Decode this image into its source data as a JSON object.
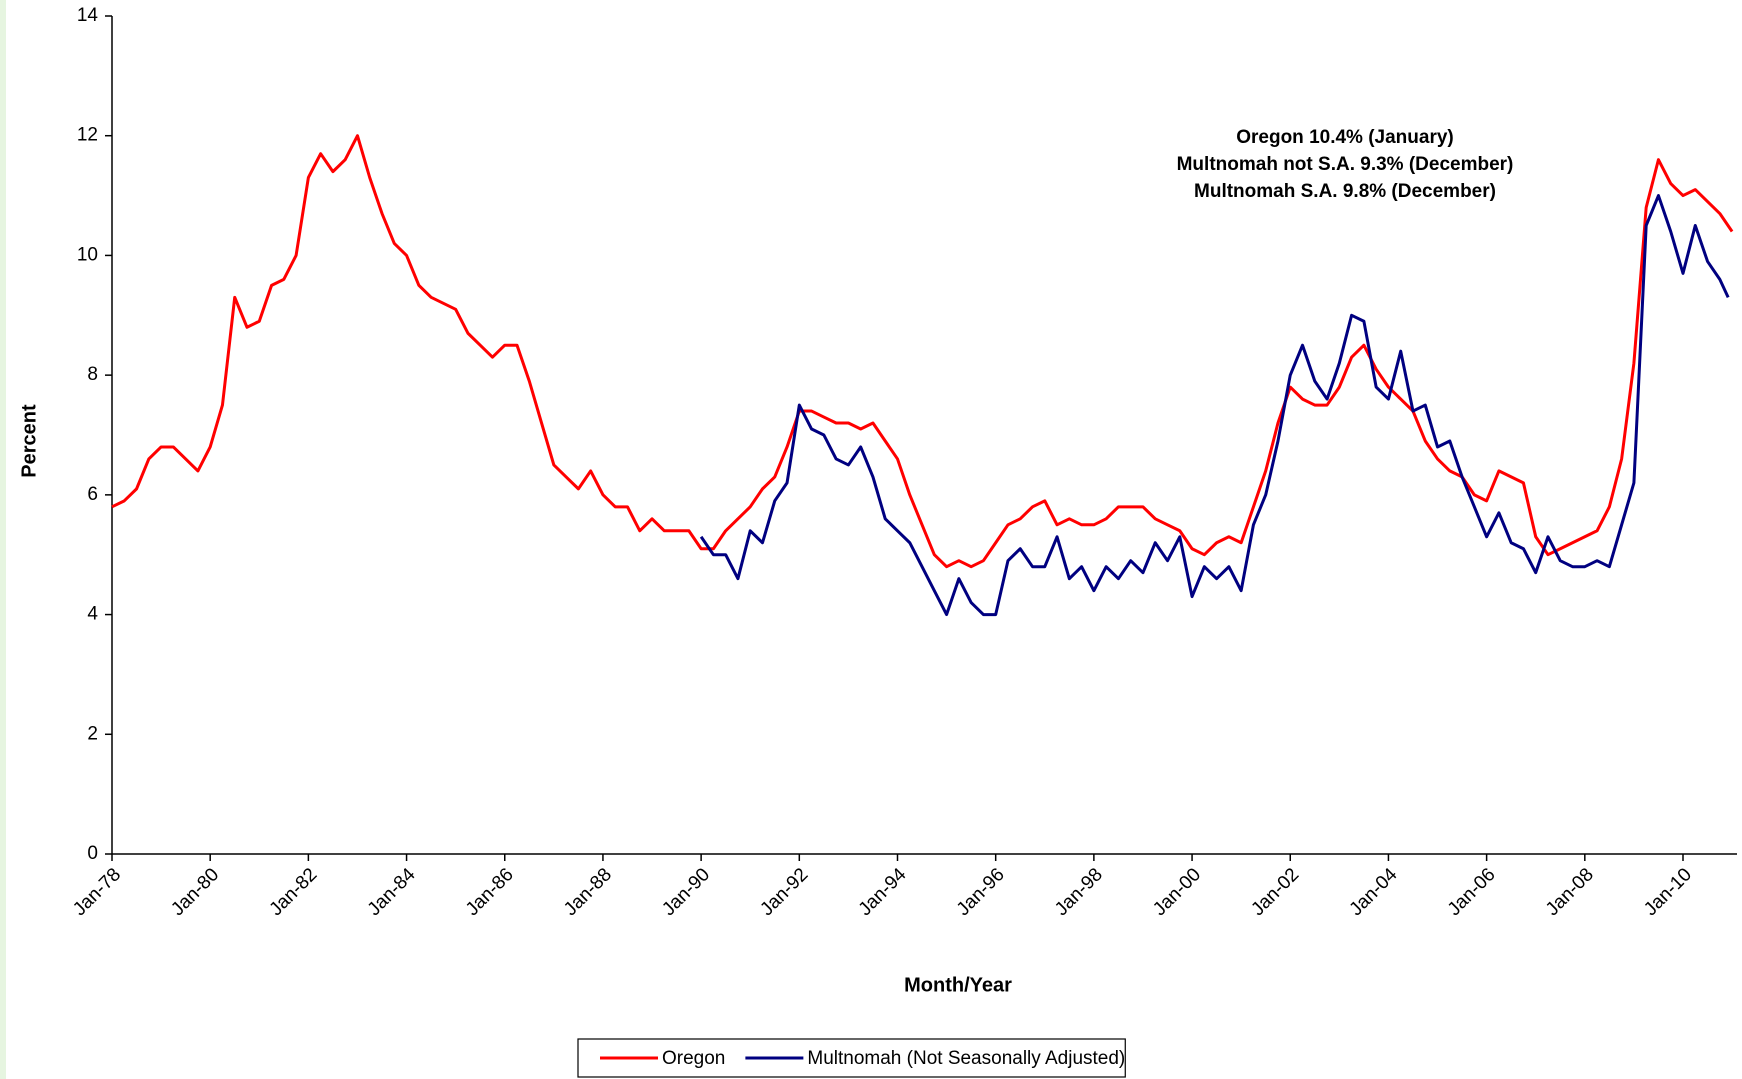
{
  "chart_data": {
    "type": "line",
    "x_label": "Month/Year",
    "y_label": "Percent",
    "annotations": [
      "Oregon 10.4% (January)",
      "Multnomah not S.A.  9.3% (December)",
      "Multnomah S.A.  9.8% (December)"
    ],
    "xlim": [
      1978,
      2011.1
    ],
    "xticks": [
      {
        "value": 1978,
        "label": "Jan-78"
      },
      {
        "value": 1980,
        "label": "Jan-80"
      },
      {
        "value": 1982,
        "label": "Jan-82"
      },
      {
        "value": 1984,
        "label": "Jan-84"
      },
      {
        "value": 1986,
        "label": "Jan-86"
      },
      {
        "value": 1988,
        "label": "Jan-88"
      },
      {
        "value": 1990,
        "label": "Jan-90"
      },
      {
        "value": 1992,
        "label": "Jan-92"
      },
      {
        "value": 1994,
        "label": "Jan-94"
      },
      {
        "value": 1996,
        "label": "Jan-96"
      },
      {
        "value": 1998,
        "label": "Jan-98"
      },
      {
        "value": 2000,
        "label": "Jan-00"
      },
      {
        "value": 2002,
        "label": "Jan-02"
      },
      {
        "value": 2004,
        "label": "Jan-04"
      },
      {
        "value": 2006,
        "label": "Jan-06"
      },
      {
        "value": 2008,
        "label": "Jan-08"
      },
      {
        "value": 2010,
        "label": "Jan-10"
      }
    ],
    "ylim": [
      0,
      14
    ],
    "yticks": [
      0,
      2,
      4,
      6,
      8,
      10,
      12,
      14
    ],
    "grid": false,
    "legend": "bottom",
    "series": [
      {
        "name": "Oregon",
        "color": "#ff0000",
        "x": [
          1978,
          1978.25,
          1978.5,
          1978.75,
          1979,
          1979.25,
          1979.5,
          1979.75,
          1980,
          1980.25,
          1980.5,
          1980.75,
          1981,
          1981.25,
          1981.5,
          1981.75,
          1982,
          1982.25,
          1982.5,
          1982.75,
          1983,
          1983.25,
          1983.5,
          1983.75,
          1984,
          1984.25,
          1984.5,
          1984.75,
          1985,
          1985.25,
          1985.5,
          1985.75,
          1986,
          1986.25,
          1986.5,
          1986.75,
          1987,
          1987.25,
          1987.5,
          1987.75,
          1988,
          1988.25,
          1988.5,
          1988.75,
          1989,
          1989.25,
          1989.5,
          1989.75,
          1990,
          1990.25,
          1990.5,
          1990.75,
          1991,
          1991.25,
          1991.5,
          1991.75,
          1992,
          1992.25,
          1992.5,
          1992.75,
          1993,
          1993.25,
          1993.5,
          1993.75,
          1994,
          1994.25,
          1994.5,
          1994.75,
          1995,
          1995.25,
          1995.5,
          1995.75,
          1996,
          1996.25,
          1996.5,
          1996.75,
          1997,
          1997.25,
          1997.5,
          1997.75,
          1998,
          1998.25,
          1998.5,
          1998.75,
          1999,
          1999.25,
          1999.5,
          1999.75,
          2000,
          2000.25,
          2000.5,
          2000.75,
          2001,
          2001.25,
          2001.5,
          2001.75,
          2002,
          2002.25,
          2002.5,
          2002.75,
          2003,
          2003.25,
          2003.5,
          2003.75,
          2004,
          2004.25,
          2004.5,
          2004.75,
          2005,
          2005.25,
          2005.5,
          2005.75,
          2006,
          2006.25,
          2006.5,
          2006.75,
          2007,
          2007.25,
          2007.5,
          2007.75,
          2008,
          2008.25,
          2008.5,
          2008.75,
          2009,
          2009.25,
          2009.5,
          2009.75,
          2010,
          2010.25,
          2010.5,
          2010.75,
          2011
        ],
        "values": [
          5.8,
          5.9,
          6.1,
          6.6,
          6.8,
          6.8,
          6.6,
          6.4,
          6.8,
          7.5,
          9.3,
          8.8,
          8.9,
          9.5,
          9.6,
          10.0,
          11.3,
          11.7,
          11.4,
          11.6,
          12.0,
          11.3,
          10.7,
          10.2,
          10.0,
          9.5,
          9.3,
          9.2,
          9.1,
          8.7,
          8.5,
          8.3,
          8.5,
          8.5,
          7.9,
          7.2,
          6.5,
          6.3,
          6.1,
          6.4,
          6.0,
          5.8,
          5.8,
          5.4,
          5.6,
          5.4,
          5.4,
          5.4,
          5.1,
          5.1,
          5.4,
          5.6,
          5.8,
          6.1,
          6.3,
          6.8,
          7.4,
          7.4,
          7.3,
          7.2,
          7.2,
          7.1,
          7.2,
          6.9,
          6.6,
          6.0,
          5.5,
          5.0,
          4.8,
          4.9,
          4.8,
          4.9,
          5.2,
          5.5,
          5.6,
          5.8,
          5.9,
          5.5,
          5.6,
          5.5,
          5.5,
          5.6,
          5.8,
          5.8,
          5.8,
          5.6,
          5.5,
          5.4,
          5.1,
          5.0,
          5.2,
          5.3,
          5.2,
          5.8,
          6.4,
          7.2,
          7.8,
          7.6,
          7.5,
          7.5,
          7.8,
          8.3,
          8.5,
          8.1,
          7.8,
          7.6,
          7.4,
          6.9,
          6.6,
          6.4,
          6.3,
          6.0,
          5.9,
          6.4,
          6.3,
          6.2,
          5.3,
          5.0,
          5.1,
          5.2,
          5.3,
          5.4,
          5.8,
          6.6,
          8.2,
          10.8,
          11.6,
          11.2,
          11.0,
          11.1,
          10.9,
          10.7,
          10.4
        ]
      },
      {
        "name": "Multnomah (Not Seasonally Adjusted)",
        "color": "#000080",
        "x": [
          1990,
          1990.25,
          1990.5,
          1990.75,
          1991,
          1991.25,
          1991.5,
          1991.75,
          1992,
          1992.25,
          1992.5,
          1992.75,
          1993,
          1993.25,
          1993.5,
          1993.75,
          1994,
          1994.25,
          1994.5,
          1994.75,
          1995,
          1995.25,
          1995.5,
          1995.75,
          1996,
          1996.25,
          1996.5,
          1996.75,
          1997,
          1997.25,
          1997.5,
          1997.75,
          1998,
          1998.25,
          1998.5,
          1998.75,
          1999,
          1999.25,
          1999.5,
          1999.75,
          2000,
          2000.25,
          2000.5,
          2000.75,
          2001,
          2001.25,
          2001.5,
          2001.75,
          2002,
          2002.25,
          2002.5,
          2002.75,
          2003,
          2003.25,
          2003.5,
          2003.75,
          2004,
          2004.25,
          2004.5,
          2004.75,
          2005,
          2005.25,
          2005.5,
          2005.75,
          2006,
          2006.25,
          2006.5,
          2006.75,
          2007,
          2007.25,
          2007.5,
          2007.75,
          2008,
          2008.25,
          2008.5,
          2008.75,
          2009,
          2009.25,
          2009.5,
          2009.75,
          2010,
          2010.25,
          2010.5,
          2010.75,
          2010.92
        ],
        "values": [
          5.3,
          5.0,
          5.0,
          4.6,
          5.4,
          5.2,
          5.9,
          6.2,
          7.5,
          7.1,
          7.0,
          6.6,
          6.5,
          6.8,
          6.3,
          5.6,
          5.4,
          5.2,
          4.8,
          4.4,
          4.0,
          4.6,
          4.2,
          4.0,
          4.0,
          4.9,
          5.1,
          4.8,
          4.8,
          5.3,
          4.6,
          4.8,
          4.4,
          4.8,
          4.6,
          4.9,
          4.7,
          5.2,
          4.9,
          5.3,
          4.3,
          4.8,
          4.6,
          4.8,
          4.4,
          5.5,
          6.0,
          6.9,
          8.0,
          8.5,
          7.9,
          7.6,
          8.2,
          9.0,
          8.9,
          7.8,
          7.6,
          8.4,
          7.4,
          7.5,
          6.8,
          6.9,
          6.3,
          5.8,
          5.3,
          5.7,
          5.2,
          5.1,
          4.7,
          5.3,
          4.9,
          4.8,
          4.8,
          4.9,
          4.8,
          5.5,
          6.2,
          10.5,
          11.0,
          10.4,
          9.7,
          10.5,
          9.9,
          9.6,
          9.3
        ]
      }
    ]
  }
}
